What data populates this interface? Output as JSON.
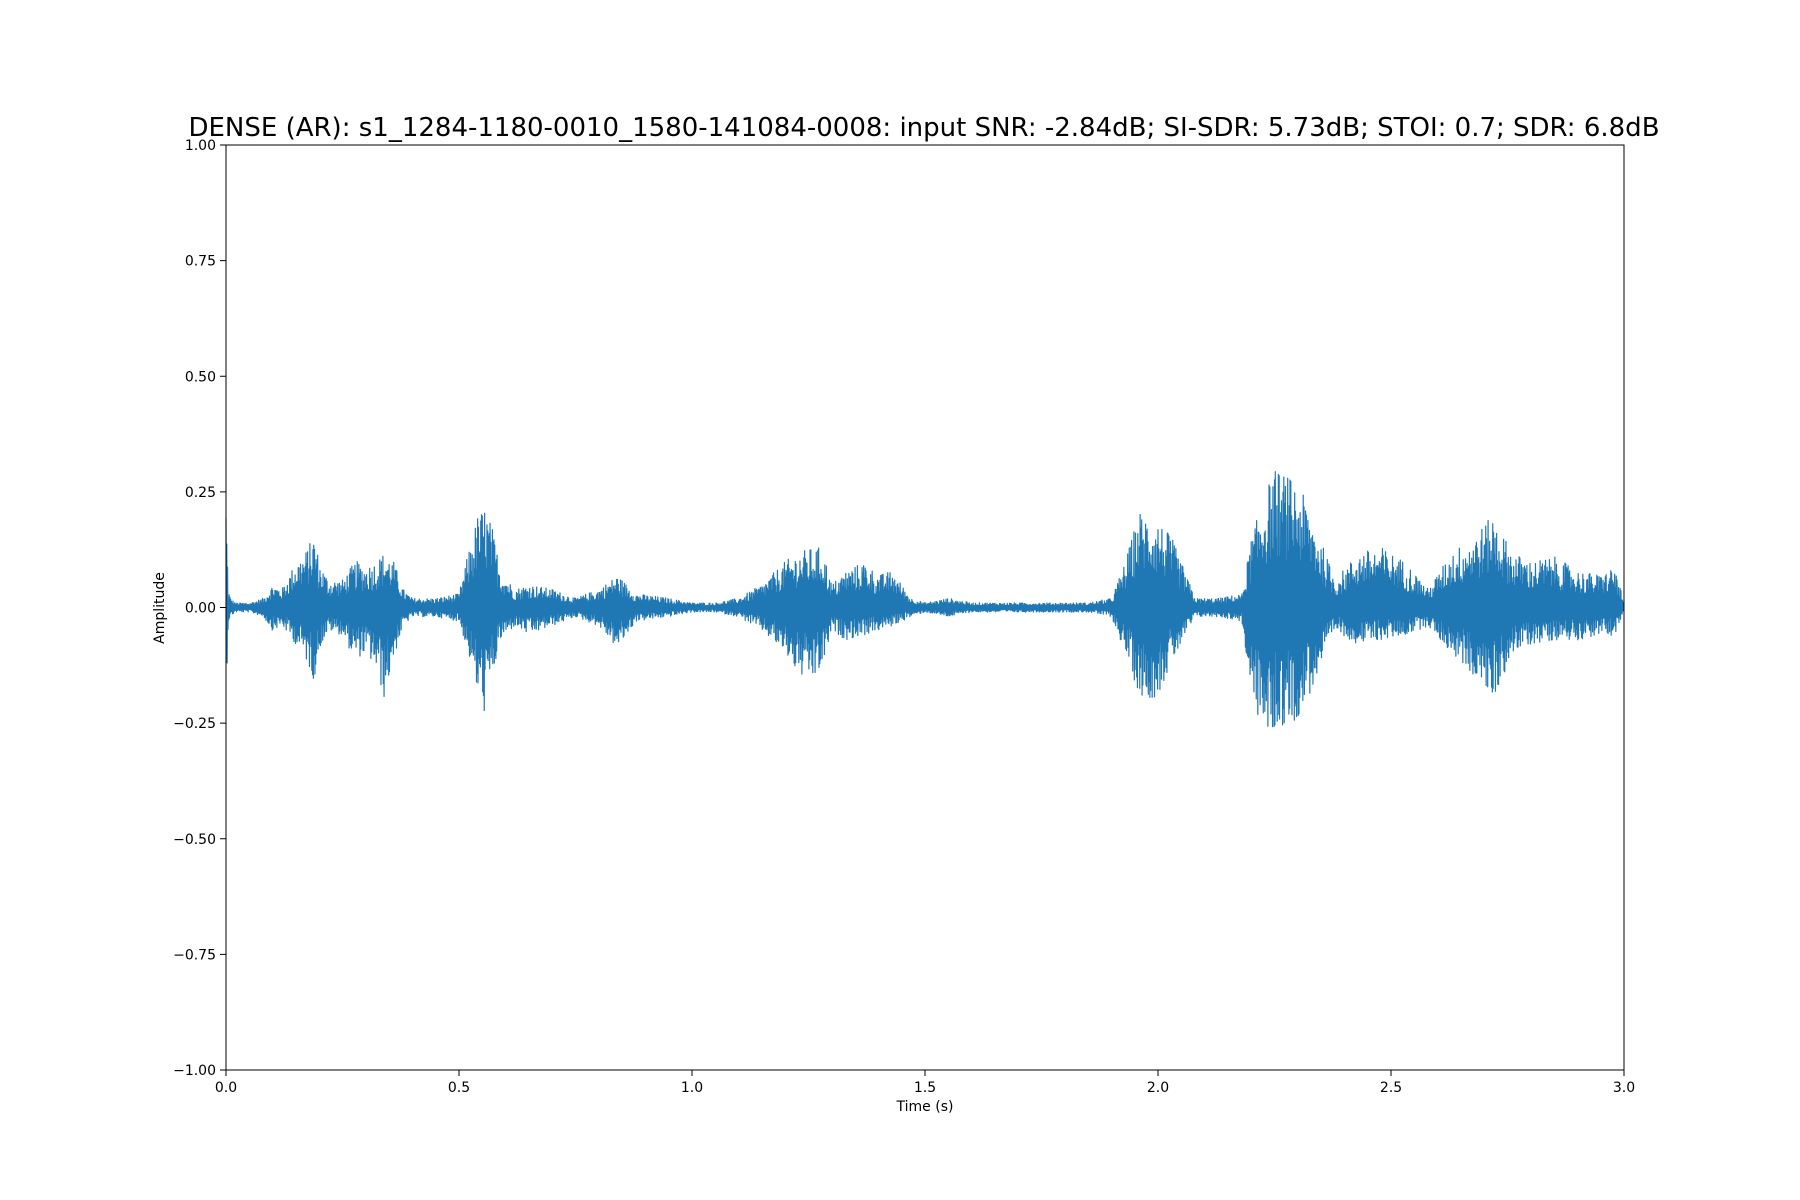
{
  "chart_data": {
    "type": "line",
    "title": "DENSE (AR): s1_1284-1180-0010_1580-141084-0008: input SNR: -2.84dB; SI-SDR: 5.73dB; STOI: 0.7; SDR: 6.8dB",
    "xlabel": "Time (s)",
    "ylabel": "Amplitude",
    "xlim": [
      0.0,
      3.0
    ],
    "ylim": [
      -1.0,
      1.0
    ],
    "x_ticks": [
      0.0,
      0.5,
      1.0,
      1.5,
      2.0,
      2.5,
      3.0
    ],
    "x_tick_labels": [
      "0.0",
      "0.5",
      "1.0",
      "1.5",
      "2.0",
      "2.5",
      "3.0"
    ],
    "y_ticks": [
      1.0,
      0.75,
      0.5,
      0.25,
      0.0,
      -0.25,
      -0.5,
      -0.75,
      -1.0
    ],
    "y_tick_labels": [
      "1.00",
      "0.75",
      "0.50",
      "0.25",
      "0.00",
      "−0.25",
      "−0.50",
      "−0.75",
      "−1.00"
    ],
    "grid": false,
    "line_color": "#1f77b4",
    "series": [
      {
        "x": [
          0.0,
          0.005,
          0.01,
          0.02,
          0.05,
          0.08,
          0.1,
          0.12,
          0.15,
          0.17,
          0.19,
          0.2,
          0.22,
          0.25,
          0.27,
          0.28,
          0.3,
          0.32,
          0.34,
          0.36,
          0.38,
          0.4,
          0.45,
          0.5,
          0.52,
          0.54,
          0.555,
          0.57,
          0.59,
          0.62,
          0.65,
          0.7,
          0.75,
          0.8,
          0.84,
          0.88,
          0.95,
          1.0,
          1.05,
          1.1,
          1.15,
          1.2,
          1.23,
          1.26,
          1.28,
          1.3,
          1.33,
          1.37,
          1.4,
          1.43,
          1.47,
          1.5,
          1.55,
          1.6,
          1.65,
          1.7,
          1.75,
          1.8,
          1.85,
          1.9,
          1.93,
          1.96,
          1.98,
          2.0,
          2.03,
          2.08,
          2.13,
          2.18,
          2.2,
          2.23,
          2.25,
          2.27,
          2.3,
          2.33,
          2.38,
          2.43,
          2.48,
          2.53,
          2.58,
          2.63,
          2.67,
          2.72,
          2.76,
          2.8,
          2.85,
          2.9,
          2.95,
          2.98,
          3.0
        ],
        "y_max": [
          0.25,
          0.04,
          0.02,
          0.01,
          0.01,
          0.02,
          0.05,
          0.04,
          0.1,
          0.12,
          0.16,
          0.1,
          0.06,
          0.06,
          0.09,
          0.1,
          0.09,
          0.1,
          0.12,
          0.1,
          0.04,
          0.02,
          0.02,
          0.03,
          0.12,
          0.2,
          0.22,
          0.18,
          0.08,
          0.04,
          0.05,
          0.04,
          0.02,
          0.04,
          0.07,
          0.03,
          0.02,
          0.01,
          0.01,
          0.02,
          0.05,
          0.1,
          0.12,
          0.13,
          0.13,
          0.05,
          0.08,
          0.1,
          0.07,
          0.08,
          0.02,
          0.01,
          0.02,
          0.01,
          0.01,
          0.01,
          0.01,
          0.01,
          0.01,
          0.02,
          0.1,
          0.21,
          0.2,
          0.19,
          0.15,
          0.02,
          0.02,
          0.03,
          0.15,
          0.25,
          0.3,
          0.29,
          0.27,
          0.2,
          0.06,
          0.12,
          0.13,
          0.1,
          0.04,
          0.12,
          0.15,
          0.2,
          0.12,
          0.1,
          0.11,
          0.08,
          0.07,
          0.09,
          0.01
        ],
        "y_min": [
          -0.21,
          -0.03,
          -0.02,
          -0.01,
          -0.01,
          -0.02,
          -0.05,
          -0.04,
          -0.08,
          -0.11,
          -0.16,
          -0.09,
          -0.05,
          -0.06,
          -0.1,
          -0.11,
          -0.1,
          -0.13,
          -0.2,
          -0.11,
          -0.04,
          -0.02,
          -0.02,
          -0.03,
          -0.1,
          -0.19,
          -0.23,
          -0.16,
          -0.07,
          -0.04,
          -0.06,
          -0.04,
          -0.02,
          -0.04,
          -0.09,
          -0.03,
          -0.02,
          -0.01,
          -0.01,
          -0.02,
          -0.05,
          -0.1,
          -0.15,
          -0.16,
          -0.13,
          -0.05,
          -0.07,
          -0.06,
          -0.05,
          -0.04,
          -0.02,
          -0.01,
          -0.02,
          -0.01,
          -0.01,
          -0.01,
          -0.01,
          -0.01,
          -0.01,
          -0.02,
          -0.1,
          -0.19,
          -0.2,
          -0.19,
          -0.12,
          -0.02,
          -0.02,
          -0.03,
          -0.2,
          -0.28,
          -0.27,
          -0.26,
          -0.24,
          -0.18,
          -0.05,
          -0.08,
          -0.07,
          -0.06,
          -0.04,
          -0.1,
          -0.14,
          -0.2,
          -0.1,
          -0.08,
          -0.07,
          -0.07,
          -0.06,
          -0.06,
          -0.01
        ]
      }
    ]
  }
}
